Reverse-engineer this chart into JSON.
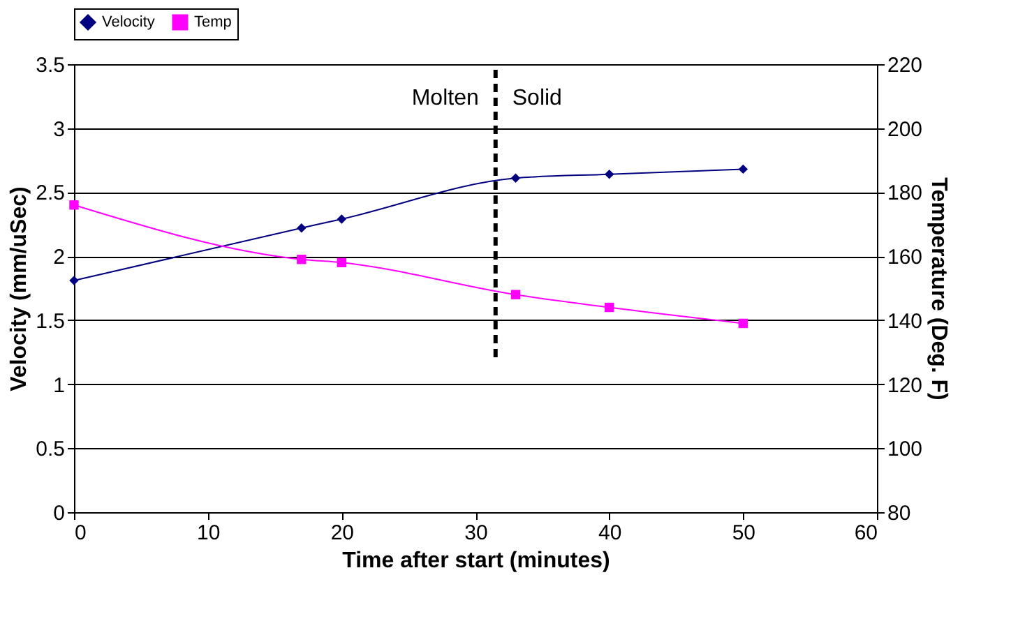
{
  "chart_data": {
    "type": "line",
    "xlabel": "Time after start (minutes)",
    "ylabel": "Velocity (mm/uSec)",
    "y2label": "Temperature (Deg. F)",
    "xlim": [
      0,
      60
    ],
    "xticks": [
      0,
      10,
      20,
      30,
      40,
      50,
      60
    ],
    "ylim": [
      0,
      3.5
    ],
    "yticks": [
      0,
      0.5,
      1,
      1.5,
      2,
      2.5,
      3,
      3.5
    ],
    "y2lim": [
      80,
      220
    ],
    "y2ticks": [
      80,
      100,
      120,
      140,
      160,
      180,
      200,
      220
    ],
    "grid": "y",
    "legend": "top",
    "series": [
      {
        "name": "Velocity",
        "color": "#000080",
        "marker": "diamond",
        "x": [
          0,
          17,
          20,
          33,
          40,
          50
        ],
        "values": [
          1.81,
          2.22,
          2.29,
          2.61,
          2.64,
          2.68
        ]
      },
      {
        "name": "Temp",
        "color": "#ff00ff",
        "marker": "square",
        "axis": "y2",
        "x": [
          0,
          17,
          20,
          33,
          40,
          50
        ],
        "values": [
          176,
          159,
          158,
          148,
          144,
          139
        ]
      }
    ],
    "ref_lines": [
      {
        "axis": "x",
        "value": 31.5,
        "color": "#000000",
        "line_style": "dashed"
      }
    ],
    "annotations": [
      "Molten",
      "Solid"
    ]
  }
}
